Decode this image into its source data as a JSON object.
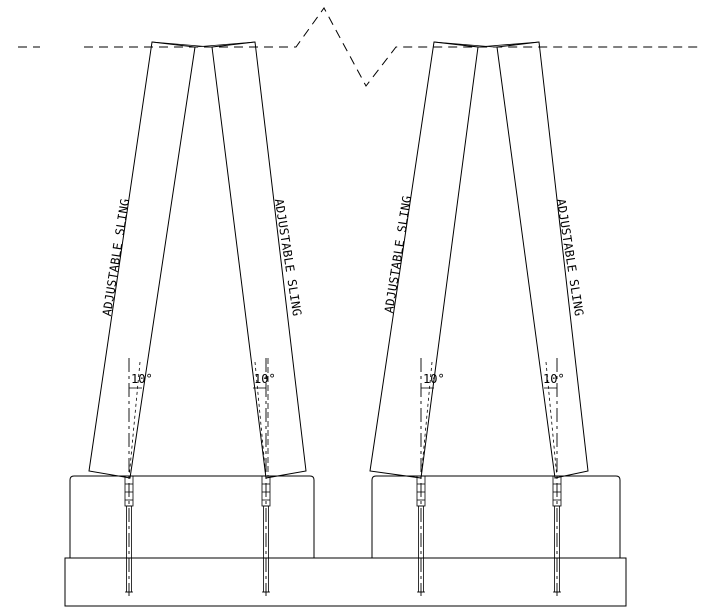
{
  "slings": [
    {
      "label": "ADJUSTABLE SLING"
    },
    {
      "label": "ADJUSTABLE SLING"
    },
    {
      "label": "ADJUSTABLE SLING"
    },
    {
      "label": "ADJUSTABLE SLING"
    }
  ],
  "angles": [
    {
      "text": "10°"
    },
    {
      "text": "10°"
    },
    {
      "text": "10°"
    },
    {
      "text": "10°"
    }
  ]
}
